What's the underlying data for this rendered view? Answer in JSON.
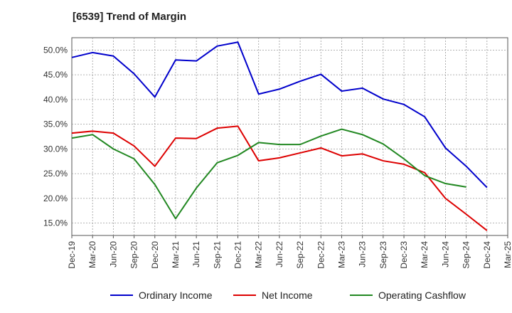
{
  "chart_data": {
    "type": "line",
    "title": "[6539]  Trend of Margin",
    "xlabel": "",
    "ylabel": "",
    "ylim": [
      12.5,
      52.5
    ],
    "yticks": [
      15,
      20,
      25,
      30,
      35,
      40,
      45,
      50
    ],
    "y_tick_format": "{v}.0%",
    "categories": [
      "Dec-19",
      "Mar-20",
      "Jun-20",
      "Sep-20",
      "Dec-20",
      "Mar-21",
      "Jun-21",
      "Sep-21",
      "Dec-21",
      "Mar-22",
      "Jun-22",
      "Sep-22",
      "Dec-22",
      "Mar-23",
      "Jun-23",
      "Sep-23",
      "Dec-23",
      "Mar-24",
      "Jun-24",
      "Sep-24",
      "Dec-24",
      "Mar-25"
    ],
    "grid": true,
    "legend_position": "bottom",
    "series": [
      {
        "name": "Ordinary Income",
        "color": "#0000cc",
        "values": [
          48.5,
          49.5,
          48.8,
          45.2,
          40.5,
          48.0,
          47.8,
          50.8,
          51.6,
          41.1,
          42.1,
          43.7,
          45.1,
          41.7,
          42.3,
          40.1,
          39.0,
          36.5,
          30.2,
          26.5,
          22.2,
          null
        ]
      },
      {
        "name": "Net Income",
        "color": "#dd0000",
        "values": [
          33.2,
          33.6,
          33.2,
          30.6,
          26.5,
          32.2,
          32.1,
          34.2,
          34.6,
          27.6,
          28.2,
          29.2,
          30.2,
          28.6,
          29.0,
          27.6,
          26.9,
          25.2,
          20.0,
          16.8,
          13.5,
          null
        ]
      },
      {
        "name": "Operating Cashflow",
        "color": "#228822",
        "values": [
          32.2,
          32.9,
          30.0,
          28.0,
          22.8,
          15.9,
          22.1,
          27.2,
          28.7,
          31.3,
          30.9,
          30.9,
          32.6,
          34.0,
          32.9,
          31.0,
          28.0,
          24.6,
          23.0,
          22.3,
          null,
          null
        ]
      }
    ]
  }
}
